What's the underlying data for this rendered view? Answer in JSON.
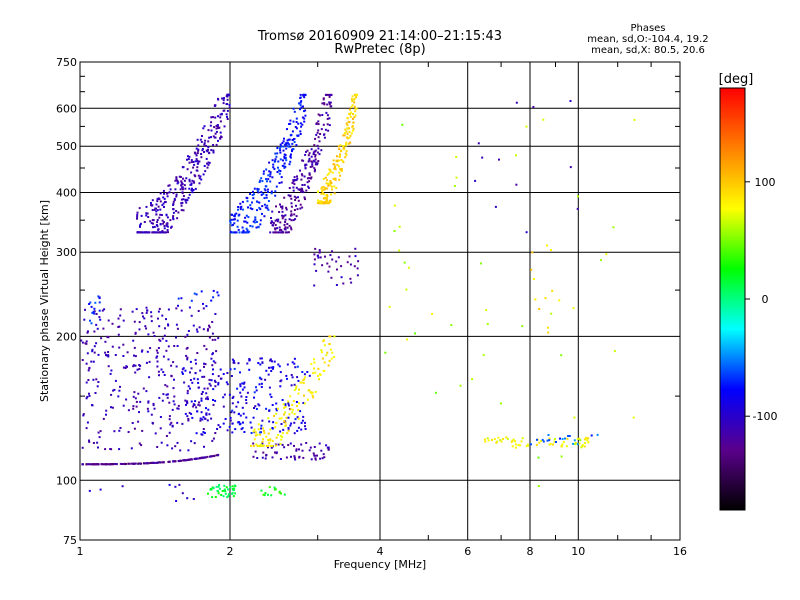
{
  "chart_data": {
    "type": "scatter",
    "title": "Tromsø 20160909 21:14:00–21:15:43",
    "subtitle": "RwPretec (8p)",
    "phases": {
      "heading": "Phases",
      "line1": "mean, sd,O:-104.4, 19.2",
      "line2": "mean, sd,X:  80.5, 20.6"
    },
    "xlabel": "Frequency [MHz]",
    "ylabel": "Stationary phase Virtual Height [km]",
    "x_scale": "log",
    "y_scale": "log",
    "xlim": [
      1,
      16
    ],
    "ylim": [
      75,
      750
    ],
    "x_ticks": [
      1,
      2,
      4,
      6,
      8,
      10,
      16
    ],
    "x_tick_labels": [
      "1",
      "2",
      "4",
      "6",
      "8",
      "10",
      "16"
    ],
    "y_ticks": [
      75,
      100,
      200,
      300,
      400,
      500,
      600,
      750
    ],
    "y_tick_labels": [
      "75",
      "100",
      "200",
      "300",
      "400",
      "500",
      "600",
      "750"
    ],
    "x_minor_ticks": [
      3,
      5,
      7,
      9,
      12,
      14
    ],
    "y_minor_ticks": [
      150,
      250,
      350,
      450,
      550,
      650,
      700
    ],
    "grid": true,
    "colorbar": {
      "title": "[deg]",
      "range": [
        -180,
        180
      ],
      "ticks": [
        100,
        0,
        -100
      ],
      "tick_labels": [
        "100",
        "0",
        "-100"
      ],
      "color_stops": [
        "#000000",
        "#5a008c",
        "#0000ff",
        "#00ffff",
        "#00ff00",
        "#ffff00",
        "#ff8000",
        "#ff0000"
      ]
    },
    "clusters": [
      {
        "x": [
          1.0,
          1.9
        ],
        "y": [
          108,
          113
        ],
        "phase": -125,
        "count": 160,
        "shape": "trace",
        "spread": 0.01
      },
      {
        "x": [
          1.0,
          1.9
        ],
        "y": [
          115,
          230
        ],
        "phase": -110,
        "count": 360,
        "shape": "box"
      },
      {
        "x": [
          1.6,
          2.85
        ],
        "y": [
          125,
          180
        ],
        "phase": -95,
        "count": 180,
        "shape": "box"
      },
      {
        "x": [
          2.0,
          2.9
        ],
        "y": [
          125,
          175
        ],
        "phase": -78,
        "count": 60,
        "shape": "box"
      },
      {
        "x": [
          2.2,
          3.2
        ],
        "y": [
          110,
          120
        ],
        "phase": -115,
        "count": 60,
        "shape": "box"
      },
      {
        "x": [
          2.2,
          3.25
        ],
        "y": [
          118,
          200
        ],
        "phase": 85,
        "count": 140,
        "shape": "curve"
      },
      {
        "x": [
          1.3,
          2.0
        ],
        "y": [
          330,
          640
        ],
        "phase": -110,
        "count": 360,
        "shape": "curve"
      },
      {
        "x": [
          2.0,
          2.85
        ],
        "y": [
          330,
          640
        ],
        "phase": -75,
        "count": 260,
        "shape": "curve"
      },
      {
        "x": [
          2.4,
          3.2
        ],
        "y": [
          330,
          640
        ],
        "phase": -118,
        "count": 230,
        "shape": "curve"
      },
      {
        "x": [
          3.0,
          3.6
        ],
        "y": [
          380,
          640
        ],
        "phase": 95,
        "count": 190,
        "shape": "curve"
      },
      {
        "x": [
          2.95,
          3.65
        ],
        "y": [
          255,
          305
        ],
        "phase": -115,
        "count": 40,
        "shape": "box"
      },
      {
        "x": [
          1.0,
          1.1
        ],
        "y": [
          210,
          245
        ],
        "phase": -70,
        "count": 16,
        "shape": "box"
      },
      {
        "x": [
          1.5,
          1.9
        ],
        "y": [
          230,
          250
        ],
        "phase": -75,
        "count": 14,
        "shape": "box"
      },
      {
        "x": [
          1.8,
          2.05
        ],
        "y": [
          92,
          98
        ],
        "phase": 15,
        "count": 40,
        "shape": "box"
      },
      {
        "x": [
          2.3,
          2.6
        ],
        "y": [
          93,
          97
        ],
        "phase": 25,
        "count": 14,
        "shape": "box"
      },
      {
        "x": [
          1.0,
          1.7
        ],
        "y": [
          88,
          98
        ],
        "phase": -100,
        "count": 10,
        "shape": "box"
      },
      {
        "x": [
          6.3,
          10.5
        ],
        "y": [
          117,
          123
        ],
        "phase": 80,
        "count": 60,
        "shape": "box"
      },
      {
        "x": [
          8.0,
          11.0
        ],
        "y": [
          118,
          125
        ],
        "phase": -60,
        "count": 18,
        "shape": "box"
      },
      {
        "x": [
          4.0,
          13.0
        ],
        "y": [
          90,
          650
        ],
        "phase": 60,
        "count": 45,
        "shape": "box"
      },
      {
        "x": [
          6.0,
          10.0
        ],
        "y": [
          330,
          650
        ],
        "phase": -110,
        "count": 12,
        "shape": "box"
      },
      {
        "x": [
          8.0,
          9.2
        ],
        "y": [
          200,
          320
        ],
        "phase": 90,
        "count": 12,
        "shape": "box"
      }
    ]
  }
}
